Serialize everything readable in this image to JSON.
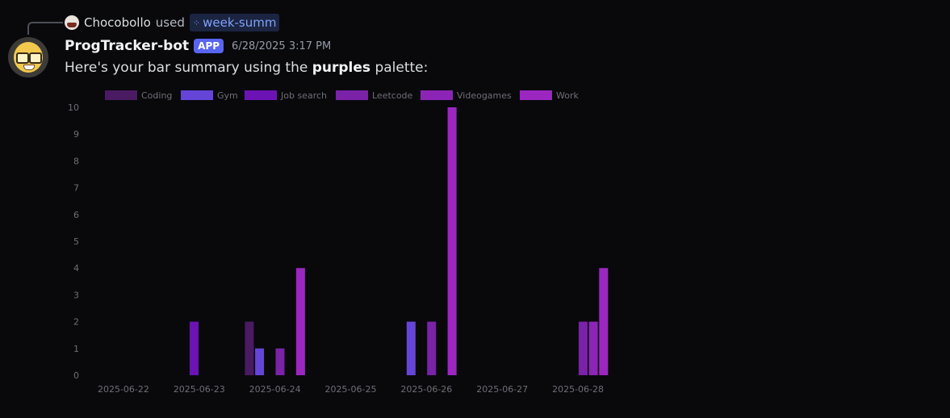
{
  "reply": {
    "user_name": "Chocobollo",
    "used_text": "used",
    "command": "week-summ",
    "command_icon": "⁘"
  },
  "message": {
    "bot_name": "ProgTracker-bot",
    "app_badge": "APP",
    "timestamp": "6/28/2025 3:17 PM",
    "text_before": "Here's your bar summary using the ",
    "text_bold": "purples",
    "text_after": " palette:"
  },
  "colors": {
    "Coding": "#4a1a63",
    "Gym": "#6545d8",
    "Job search": "#6c13b5",
    "Leetcode": "#7a22a8",
    "Videogames": "#8c25b5",
    "Work": "#9b27c0"
  },
  "chart_data": {
    "type": "bar",
    "categories": [
      "2025-06-22",
      "2025-06-23",
      "2025-06-24",
      "2025-06-25",
      "2025-06-26",
      "2025-06-27",
      "2025-06-28"
    ],
    "series": [
      {
        "name": "Coding",
        "values": [
          0,
          0,
          2,
          0,
          0,
          0,
          0
        ]
      },
      {
        "name": "Gym",
        "values": [
          0,
          0,
          1,
          0,
          2,
          0,
          0
        ]
      },
      {
        "name": "Job search",
        "values": [
          0,
          2,
          0,
          0,
          0,
          0,
          0
        ]
      },
      {
        "name": "Leetcode",
        "values": [
          0,
          0,
          1,
          0,
          2,
          0,
          2
        ]
      },
      {
        "name": "Videogames",
        "values": [
          0,
          0,
          0,
          0,
          0,
          0,
          2
        ]
      },
      {
        "name": "Work",
        "values": [
          0,
          0,
          4,
          0,
          10,
          0,
          4
        ]
      }
    ],
    "yticks": [
      "0",
      "1",
      "2",
      "3",
      "4",
      "5",
      "6",
      "7",
      "8",
      "9",
      "10"
    ],
    "ylim": [
      0,
      10
    ],
    "legend": "top",
    "grid": false
  }
}
